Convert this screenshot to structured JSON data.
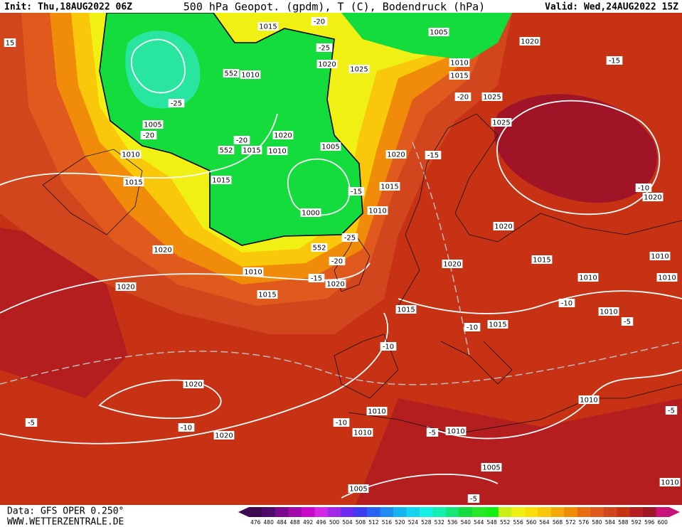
{
  "header": {
    "init": "Init: Thu,18AUG2022 06Z",
    "title": "500 hPa Geopot. (gpdm), T (C), Bodendruck (hPa)",
    "valid": "Valid: Wed,24AUG2022 15Z"
  },
  "footer": {
    "source": "Data: GFS OPER 0.250°",
    "website": "WWW.WETTERZENTRALE.DE"
  },
  "map": {
    "labels": [
      "1015",
      "-20",
      "-25",
      "1020",
      "1025",
      "552",
      "1010",
      "-25",
      "1005",
      "-20",
      "1010",
      "1015",
      "-20",
      "1020",
      "552",
      "1015",
      "1010",
      "1005",
      "1015",
      "-15",
      "1000",
      "1010",
      "1015",
      "1020",
      "-25",
      "552",
      "-20",
      "1020",
      "1010",
      "-15",
      "1020",
      "1020",
      "1015",
      "1005",
      "1020",
      "-15",
      "1010",
      "1015",
      "-20",
      "1025",
      "1025",
      "-15",
      "-10",
      "1020",
      "1020",
      "1020",
      "1015",
      "1010",
      "1010",
      "1010",
      "-10",
      "1010",
      "-5",
      "1015",
      "-10",
      "1015",
      "-10",
      "1020",
      "1010",
      "-10",
      "1010",
      "-5",
      "1010",
      "1010",
      "-5",
      "-10",
      "1020",
      "1005",
      "1005",
      "-5",
      "15",
      "1010",
      "-5"
    ]
  },
  "colorbar": {
    "values": [
      476,
      480,
      484,
      488,
      492,
      496,
      500,
      504,
      508,
      512,
      516,
      520,
      524,
      528,
      532,
      536,
      540,
      544,
      548,
      552,
      556,
      560,
      564,
      568,
      572,
      576,
      580,
      584,
      588,
      592,
      596,
      600
    ],
    "colors": [
      "#3c0a50",
      "#500a6c",
      "#7a0a8c",
      "#a00aa8",
      "#c80ac8",
      "#d228e6",
      "#a028e6",
      "#6a28f0",
      "#3c3cf0",
      "#2860f0",
      "#1e8cf0",
      "#14b4f0",
      "#14d2f0",
      "#14f0e6",
      "#14f0b4",
      "#14e678",
      "#14dc3c",
      "#28e628",
      "#14f014",
      "#c8f014",
      "#f0f014",
      "#fadc0a",
      "#fac80a",
      "#f5aa0a",
      "#f08c0a",
      "#e86e14",
      "#e05a1e",
      "#d2461e",
      "#c83214",
      "#b41e1e",
      "#a01428",
      "#c8147a"
    ]
  }
}
